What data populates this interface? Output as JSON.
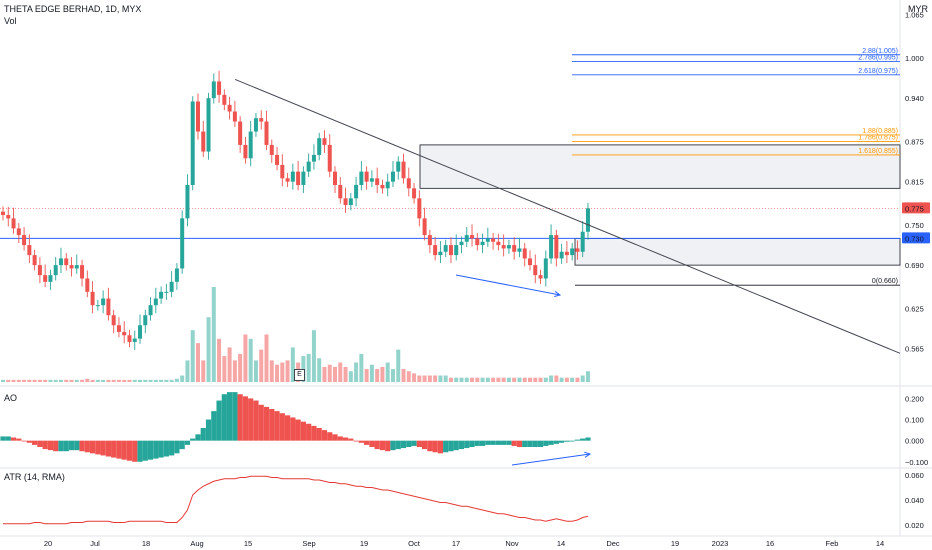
{
  "header": {
    "title": "THETA EDGE BERHAD, 1D, MYX",
    "volume_label": "Vol",
    "currency": "MYR",
    "ao_label": "AO",
    "atr_label": "ATR (14, RMA)",
    "event_marker": "E"
  },
  "colors": {
    "up": "#26a69a",
    "down": "#ef5350",
    "vol_up": "#92d3cc",
    "vol_down": "#f5a6a5",
    "trendline": "#434651",
    "support": "#2962ff",
    "fib_blue": "#2962ff",
    "fib_orange": "#ff9800",
    "atr": "#e53935",
    "axis_text": "#131722",
    "price_badge_red": "#ef5350",
    "price_badge_blue": "#2962ff"
  },
  "chart_data": [
    {
      "type": "candlestick",
      "title": "THETA EDGE BERHAD, 1D, MYX",
      "y_unit": "MYR",
      "ylim": [
        0.515,
        1.075
      ],
      "y_ticks": [
        "1.065",
        "1.000",
        "0.940",
        "0.875",
        "0.815",
        "0.750",
        "0.690",
        "0.625",
        "0.565"
      ],
      "x_ticks": [
        "20",
        "Jul",
        "18",
        "Aug",
        "15",
        "Sep",
        "19",
        "Oct",
        "17",
        "Nov",
        "14",
        "Dec",
        "19",
        "2023",
        "16",
        "Feb",
        "14"
      ],
      "last_price": "0.775",
      "support_level": "0.730",
      "fib_levels": [
        {
          "label": "2.88(1.005)",
          "value": 1.005,
          "color": "blue"
        },
        {
          "label": "2.786(0.995)",
          "value": 0.995,
          "color": "blue"
        },
        {
          "label": "2.618(0.975)",
          "value": 0.975,
          "color": "blue"
        },
        {
          "label": "1.88(0.885)",
          "value": 0.885,
          "color": "orange"
        },
        {
          "label": "1.786(0.875)",
          "value": 0.875,
          "color": "orange"
        },
        {
          "label": "1.618(0.855)",
          "value": 0.855,
          "color": "orange"
        },
        {
          "label": "0(0.660)",
          "value": 0.66,
          "color": "black"
        }
      ],
      "zones": [
        {
          "from": 0.805,
          "to": 0.87
        },
        {
          "from": 0.69,
          "to": 0.73
        }
      ],
      "close": [
        0.765,
        0.76,
        0.745,
        0.735,
        0.72,
        0.705,
        0.69,
        0.675,
        0.665,
        0.675,
        0.69,
        0.7,
        0.69,
        0.685,
        0.69,
        0.67,
        0.65,
        0.63,
        0.63,
        0.64,
        0.615,
        0.6,
        0.59,
        0.585,
        0.575,
        0.58,
        0.6,
        0.615,
        0.63,
        0.64,
        0.65,
        0.65,
        0.665,
        0.685,
        0.76,
        0.81,
        0.935,
        0.89,
        0.86,
        0.94,
        0.965,
        0.945,
        0.93,
        0.92,
        0.905,
        0.87,
        0.85,
        0.89,
        0.91,
        0.905,
        0.87,
        0.855,
        0.84,
        0.82,
        0.815,
        0.83,
        0.81,
        0.83,
        0.845,
        0.855,
        0.88,
        0.87,
        0.83,
        0.81,
        0.79,
        0.78,
        0.79,
        0.81,
        0.83,
        0.815,
        0.82,
        0.81,
        0.805,
        0.815,
        0.83,
        0.845,
        0.82,
        0.805,
        0.79,
        0.76,
        0.735,
        0.72,
        0.705,
        0.71,
        0.72,
        0.705,
        0.72,
        0.725,
        0.735,
        0.73,
        0.72,
        0.725,
        0.73,
        0.725,
        0.72,
        0.715,
        0.72,
        0.71,
        0.715,
        0.7,
        0.69,
        0.675,
        0.67,
        0.7,
        0.735,
        0.7,
        0.71,
        0.705,
        0.715,
        0.71,
        0.74,
        0.775
      ],
      "volume": [
        0.1,
        0.1,
        0.1,
        0.1,
        0.1,
        0.1,
        0.1,
        0.1,
        0.1,
        0.1,
        0.1,
        0.1,
        0.1,
        0.1,
        0.1,
        0.1,
        0.15,
        0.1,
        0.1,
        0.1,
        0.1,
        0.1,
        0.1,
        0.1,
        0.1,
        0.1,
        0.1,
        0.1,
        0.1,
        0.1,
        0.1,
        0.1,
        0.1,
        0.15,
        0.3,
        1.0,
        2.4,
        1.8,
        1.0,
        3.0,
        4.4,
        2.0,
        1.2,
        1.6,
        1.0,
        1.3,
        2.2,
        2.0,
        1.0,
        1.5,
        2.2,
        1.0,
        0.8,
        0.9,
        1.0,
        1.6,
        0.9,
        1.2,
        1.3,
        2.4,
        1.1,
        0.7,
        0.8,
        0.7,
        0.9,
        0.7,
        0.5,
        0.9,
        1.3,
        0.6,
        0.8,
        0.6,
        0.7,
        0.9,
        0.6,
        1.5,
        0.6,
        0.5,
        0.4,
        0.3,
        0.3,
        0.3,
        0.3,
        0.3,
        0.3,
        0.2,
        0.2,
        0.2,
        0.2,
        0.2,
        0.2,
        0.2,
        0.2,
        0.2,
        0.2,
        0.2,
        0.2,
        0.2,
        0.2,
        0.2,
        0.2,
        0.2,
        0.2,
        0.2,
        0.3,
        0.3,
        0.2,
        0.2,
        0.2,
        0.2,
        0.3,
        0.5
      ]
    },
    {
      "type": "bar",
      "title": "AO",
      "ylim": [
        -0.12,
        0.24
      ],
      "y_ticks": [
        "0.200",
        "0.100",
        "0.000",
        "−0.100"
      ],
      "values": [
        0.02,
        0.02,
        0.015,
        0.01,
        0.0,
        -0.01,
        -0.02,
        -0.03,
        -0.04,
        -0.045,
        -0.05,
        -0.05,
        -0.05,
        -0.045,
        -0.045,
        -0.05,
        -0.055,
        -0.06,
        -0.065,
        -0.07,
        -0.075,
        -0.08,
        -0.085,
        -0.09,
        -0.095,
        -0.1,
        -0.1,
        -0.095,
        -0.09,
        -0.085,
        -0.08,
        -0.075,
        -0.07,
        -0.06,
        -0.04,
        -0.02,
        0.01,
        0.03,
        0.06,
        0.1,
        0.14,
        0.19,
        0.22,
        0.23,
        0.23,
        0.22,
        0.21,
        0.2,
        0.19,
        0.17,
        0.16,
        0.15,
        0.14,
        0.13,
        0.12,
        0.11,
        0.1,
        0.09,
        0.08,
        0.07,
        0.06,
        0.05,
        0.04,
        0.03,
        0.02,
        0.015,
        0.01,
        0.0,
        -0.01,
        -0.02,
        -0.03,
        -0.04,
        -0.045,
        -0.05,
        -0.045,
        -0.04,
        -0.035,
        -0.03,
        -0.025,
        -0.03,
        -0.04,
        -0.05,
        -0.055,
        -0.06,
        -0.055,
        -0.05,
        -0.045,
        -0.04,
        -0.035,
        -0.03,
        -0.025,
        -0.025,
        -0.02,
        -0.02,
        -0.02,
        -0.02,
        -0.02,
        -0.025,
        -0.03,
        -0.03,
        -0.03,
        -0.03,
        -0.03,
        -0.025,
        -0.02,
        -0.015,
        -0.01,
        -0.005,
        0.0,
        0.005,
        0.01,
        0.015
      ]
    },
    {
      "type": "line",
      "title": "ATR (14, RMA)",
      "ylim": [
        0.012,
        0.064
      ],
      "y_ticks": [
        "0.060",
        "0.040",
        "0.020"
      ],
      "values": [
        0.021,
        0.021,
        0.021,
        0.021,
        0.021,
        0.021,
        0.022,
        0.022,
        0.021,
        0.021,
        0.021,
        0.021,
        0.021,
        0.022,
        0.022,
        0.022,
        0.023,
        0.023,
        0.023,
        0.023,
        0.023,
        0.022,
        0.022,
        0.022,
        0.023,
        0.023,
        0.023,
        0.023,
        0.023,
        0.023,
        0.023,
        0.022,
        0.022,
        0.022,
        0.026,
        0.032,
        0.044,
        0.048,
        0.051,
        0.053,
        0.055,
        0.056,
        0.057,
        0.057,
        0.057,
        0.058,
        0.058,
        0.059,
        0.059,
        0.059,
        0.059,
        0.058,
        0.058,
        0.057,
        0.057,
        0.057,
        0.057,
        0.057,
        0.057,
        0.056,
        0.056,
        0.055,
        0.054,
        0.054,
        0.053,
        0.053,
        0.052,
        0.051,
        0.051,
        0.05,
        0.05,
        0.049,
        0.048,
        0.048,
        0.047,
        0.046,
        0.045,
        0.044,
        0.043,
        0.042,
        0.041,
        0.04,
        0.039,
        0.038,
        0.038,
        0.037,
        0.036,
        0.035,
        0.035,
        0.034,
        0.033,
        0.032,
        0.031,
        0.03,
        0.029,
        0.029,
        0.028,
        0.027,
        0.026,
        0.026,
        0.025,
        0.024,
        0.024,
        0.023,
        0.024,
        0.025,
        0.024,
        0.023,
        0.023,
        0.024,
        0.026,
        0.027
      ]
    }
  ]
}
